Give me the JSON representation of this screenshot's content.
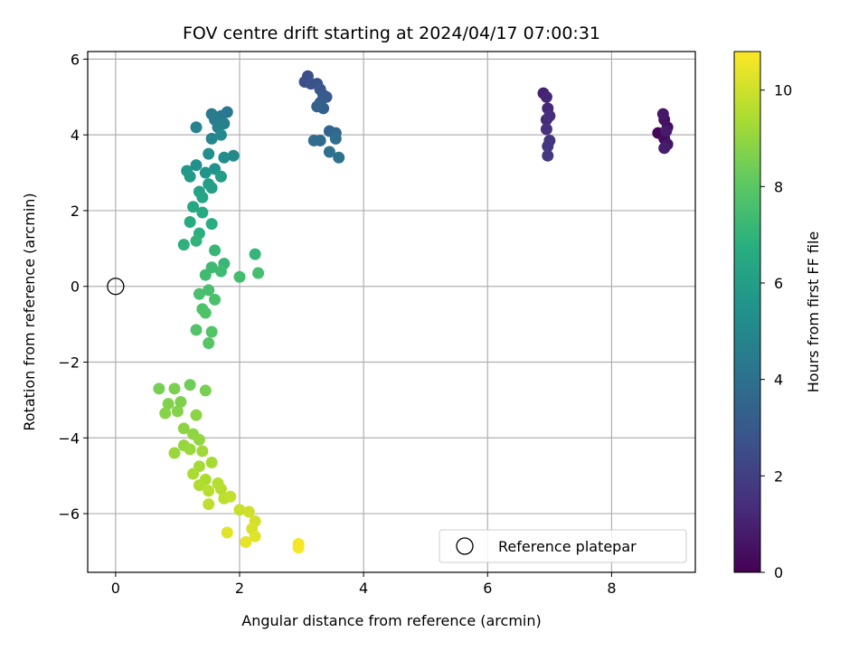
{
  "chart_data": {
    "type": "scatter",
    "title": "FOV centre drift starting at 2024/04/17 07:00:31",
    "xlabel": "Angular distance from reference (arcmin)",
    "ylabel": "Rotation from reference (arcmin)",
    "xlim": [
      -0.45,
      9.35
    ],
    "ylim": [
      -7.55,
      6.2
    ],
    "xticks": [
      0,
      2,
      4,
      6,
      8
    ],
    "yticks": [
      -6,
      -4,
      -2,
      0,
      2,
      4,
      6
    ],
    "xtick_labels": [
      "0",
      "2",
      "4",
      "6",
      "8"
    ],
    "ytick_labels": [
      "−6",
      "−4",
      "−2",
      "0",
      "2",
      "4",
      "6"
    ],
    "grid": true,
    "colormap": "viridis",
    "colorbar": {
      "label": "Hours from first FF file",
      "range": [
        0,
        10.8
      ],
      "ticks": [
        0,
        2,
        4,
        6,
        8,
        10
      ],
      "tick_labels": [
        "0",
        "2",
        "4",
        "6",
        "8",
        "10"
      ]
    },
    "legend": {
      "label": "Reference platepar",
      "location": "lower right"
    },
    "reference_point": {
      "x": 0,
      "y": 0
    },
    "points": [
      [
        8.75,
        4.05,
        0.1
      ],
      [
        8.85,
        3.9,
        0.3
      ],
      [
        8.9,
        4.2,
        0.4
      ],
      [
        8.85,
        4.4,
        0.5
      ],
      [
        8.9,
        3.75,
        0.6
      ],
      [
        8.83,
        4.55,
        0.7
      ],
      [
        8.88,
        4.1,
        0.8
      ],
      [
        8.85,
        3.65,
        0.9
      ],
      [
        6.9,
        5.1,
        1.0
      ],
      [
        6.95,
        5.0,
        1.1
      ],
      [
        6.97,
        4.7,
        1.2
      ],
      [
        6.95,
        4.4,
        1.3
      ],
      [
        7.0,
        4.5,
        1.4
      ],
      [
        6.95,
        4.15,
        1.5
      ],
      [
        7.0,
        3.85,
        1.6
      ],
      [
        6.97,
        3.7,
        1.7
      ],
      [
        6.97,
        3.45,
        1.8
      ],
      [
        3.1,
        5.55,
        2.5
      ],
      [
        3.05,
        5.4,
        2.6
      ],
      [
        3.15,
        5.35,
        2.7
      ],
      [
        3.25,
        5.35,
        2.8
      ],
      [
        3.3,
        5.2,
        2.9
      ],
      [
        3.35,
        5.05,
        3.0
      ],
      [
        3.4,
        5.0,
        3.1
      ],
      [
        3.3,
        4.85,
        3.2
      ],
      [
        3.35,
        4.7,
        3.3
      ],
      [
        3.25,
        4.75,
        3.4
      ],
      [
        3.45,
        4.1,
        3.5
      ],
      [
        3.55,
        4.05,
        3.6
      ],
      [
        3.3,
        3.85,
        3.7
      ],
      [
        3.2,
        3.85,
        3.8
      ],
      [
        3.55,
        3.9,
        3.9
      ],
      [
        3.45,
        3.55,
        4.0
      ],
      [
        3.6,
        3.4,
        4.1
      ],
      [
        1.8,
        4.6,
        4.2
      ],
      [
        1.7,
        4.5,
        4.3
      ],
      [
        1.55,
        4.55,
        4.4
      ],
      [
        1.6,
        4.4,
        4.5
      ],
      [
        1.75,
        4.3,
        4.6
      ],
      [
        1.65,
        4.2,
        4.7
      ],
      [
        1.3,
        4.2,
        4.8
      ],
      [
        1.55,
        3.9,
        4.9
      ],
      [
        1.7,
        4.0,
        5.0
      ],
      [
        1.9,
        3.45,
        5.1
      ],
      [
        1.75,
        3.4,
        5.2
      ],
      [
        1.5,
        3.5,
        5.3
      ],
      [
        1.3,
        3.2,
        5.4
      ],
      [
        1.6,
        3.1,
        5.5
      ],
      [
        1.45,
        3.0,
        5.6
      ],
      [
        1.15,
        3.05,
        5.7
      ],
      [
        1.2,
        2.9,
        5.8
      ],
      [
        1.7,
        2.9,
        5.9
      ],
      [
        1.5,
        2.7,
        6.0
      ],
      [
        1.55,
        2.6,
        6.1
      ],
      [
        1.35,
        2.5,
        6.2
      ],
      [
        1.4,
        2.35,
        6.3
      ],
      [
        1.25,
        2.1,
        6.4
      ],
      [
        1.4,
        1.95,
        6.5
      ],
      [
        1.2,
        1.7,
        6.6
      ],
      [
        1.55,
        1.65,
        6.7
      ],
      [
        1.35,
        1.4,
        6.8
      ],
      [
        1.1,
        1.1,
        6.9
      ],
      [
        1.3,
        1.2,
        7.0
      ],
      [
        2.25,
        0.85,
        7.1
      ],
      [
        1.6,
        0.95,
        7.15
      ],
      [
        1.75,
        0.6,
        7.2
      ],
      [
        1.55,
        0.5,
        7.3
      ],
      [
        1.7,
        0.4,
        7.35
      ],
      [
        1.45,
        0.3,
        7.4
      ],
      [
        2.0,
        0.25,
        7.45
      ],
      [
        2.3,
        0.35,
        7.5
      ],
      [
        1.5,
        -0.1,
        7.55
      ],
      [
        1.35,
        -0.2,
        7.6
      ],
      [
        1.6,
        -0.35,
        7.65
      ],
      [
        1.4,
        -0.6,
        7.7
      ],
      [
        1.45,
        -0.7,
        7.75
      ],
      [
        1.3,
        -1.15,
        7.8
      ],
      [
        1.55,
        -1.2,
        7.85
      ],
      [
        1.5,
        -1.5,
        7.9
      ],
      [
        1.2,
        -2.6,
        8.4
      ],
      [
        0.7,
        -2.7,
        8.5
      ],
      [
        1.45,
        -2.75,
        8.55
      ],
      [
        0.95,
        -2.7,
        8.6
      ],
      [
        1.05,
        -3.05,
        8.65
      ],
      [
        0.85,
        -3.1,
        8.7
      ],
      [
        1.0,
        -3.3,
        8.75
      ],
      [
        0.8,
        -3.35,
        8.8
      ],
      [
        1.3,
        -3.4,
        8.85
      ],
      [
        1.1,
        -3.75,
        8.9
      ],
      [
        1.25,
        -3.9,
        8.95
      ],
      [
        1.35,
        -4.05,
        9.0
      ],
      [
        1.1,
        -4.2,
        9.05
      ],
      [
        0.95,
        -4.4,
        9.1
      ],
      [
        1.2,
        -4.3,
        9.15
      ],
      [
        1.4,
        -4.35,
        9.2
      ],
      [
        1.35,
        -4.75,
        9.3
      ],
      [
        1.55,
        -4.65,
        9.35
      ],
      [
        1.25,
        -4.95,
        9.4
      ],
      [
        1.45,
        -5.1,
        9.45
      ],
      [
        1.35,
        -5.25,
        9.5
      ],
      [
        1.65,
        -5.2,
        9.55
      ],
      [
        1.7,
        -5.35,
        9.6
      ],
      [
        1.5,
        -5.4,
        9.65
      ],
      [
        1.75,
        -5.6,
        9.7
      ],
      [
        1.5,
        -5.75,
        9.75
      ],
      [
        1.85,
        -5.55,
        9.8
      ],
      [
        2.0,
        -5.9,
        9.9
      ],
      [
        2.15,
        -5.95,
        10.0
      ],
      [
        2.25,
        -6.2,
        10.1
      ],
      [
        2.2,
        -6.4,
        10.2
      ],
      [
        2.25,
        -6.6,
        10.3
      ],
      [
        1.8,
        -6.5,
        10.35
      ],
      [
        2.1,
        -6.75,
        10.4
      ],
      [
        2.95,
        -6.8,
        10.6
      ],
      [
        2.95,
        -6.9,
        10.7
      ]
    ]
  }
}
